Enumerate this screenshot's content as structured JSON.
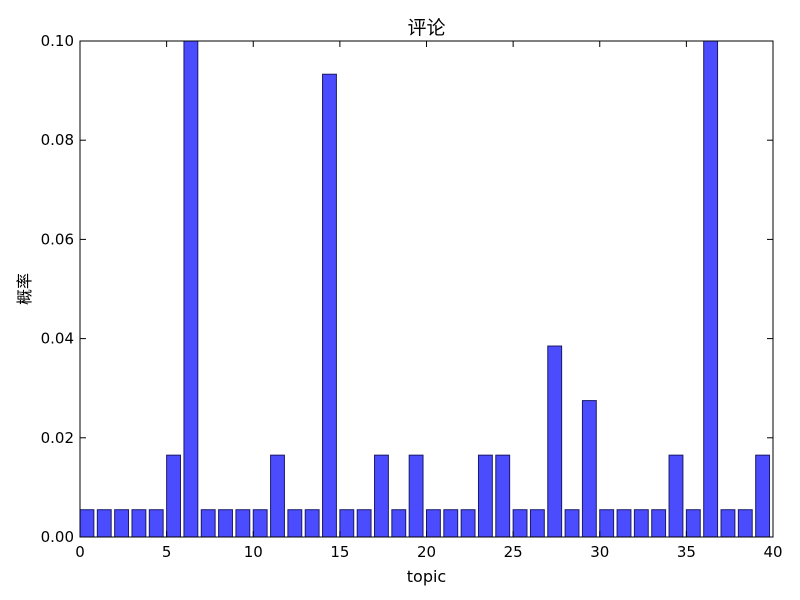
{
  "chart_data": {
    "type": "bar",
    "title": "评论",
    "xlabel": "topic",
    "ylabel": "概率",
    "xlim": [
      0,
      40
    ],
    "ylim": [
      0.0,
      0.1
    ],
    "x_ticks": [
      "0",
      "5",
      "10",
      "15",
      "20",
      "25",
      "30",
      "35",
      "40"
    ],
    "y_ticks": [
      "0.00",
      "0.02",
      "0.04",
      "0.06",
      "0.08",
      "0.10"
    ],
    "grid": false,
    "legend": "none",
    "bar_color": "#4c4cff",
    "bar_edge_color": "#1a1a66",
    "x": [
      0,
      1,
      2,
      3,
      4,
      5,
      6,
      7,
      8,
      9,
      10,
      11,
      12,
      13,
      14,
      15,
      16,
      17,
      18,
      19,
      20,
      21,
      22,
      23,
      24,
      25,
      26,
      27,
      28,
      29,
      30,
      31,
      32,
      33,
      34,
      35,
      36,
      37,
      38,
      39
    ],
    "values": [
      0.0055,
      0.0055,
      0.0055,
      0.0055,
      0.0055,
      0.0165,
      0.1,
      0.0055,
      0.0055,
      0.0055,
      0.0055,
      0.0165,
      0.0055,
      0.0055,
      0.0933,
      0.0055,
      0.0055,
      0.0165,
      0.0055,
      0.0165,
      0.0055,
      0.0055,
      0.0055,
      0.0165,
      0.0165,
      0.0055,
      0.0055,
      0.0385,
      0.0055,
      0.0275,
      0.0055,
      0.0055,
      0.0055,
      0.0055,
      0.0165,
      0.0055,
      0.1,
      0.0055,
      0.0055,
      0.0165
    ]
  }
}
